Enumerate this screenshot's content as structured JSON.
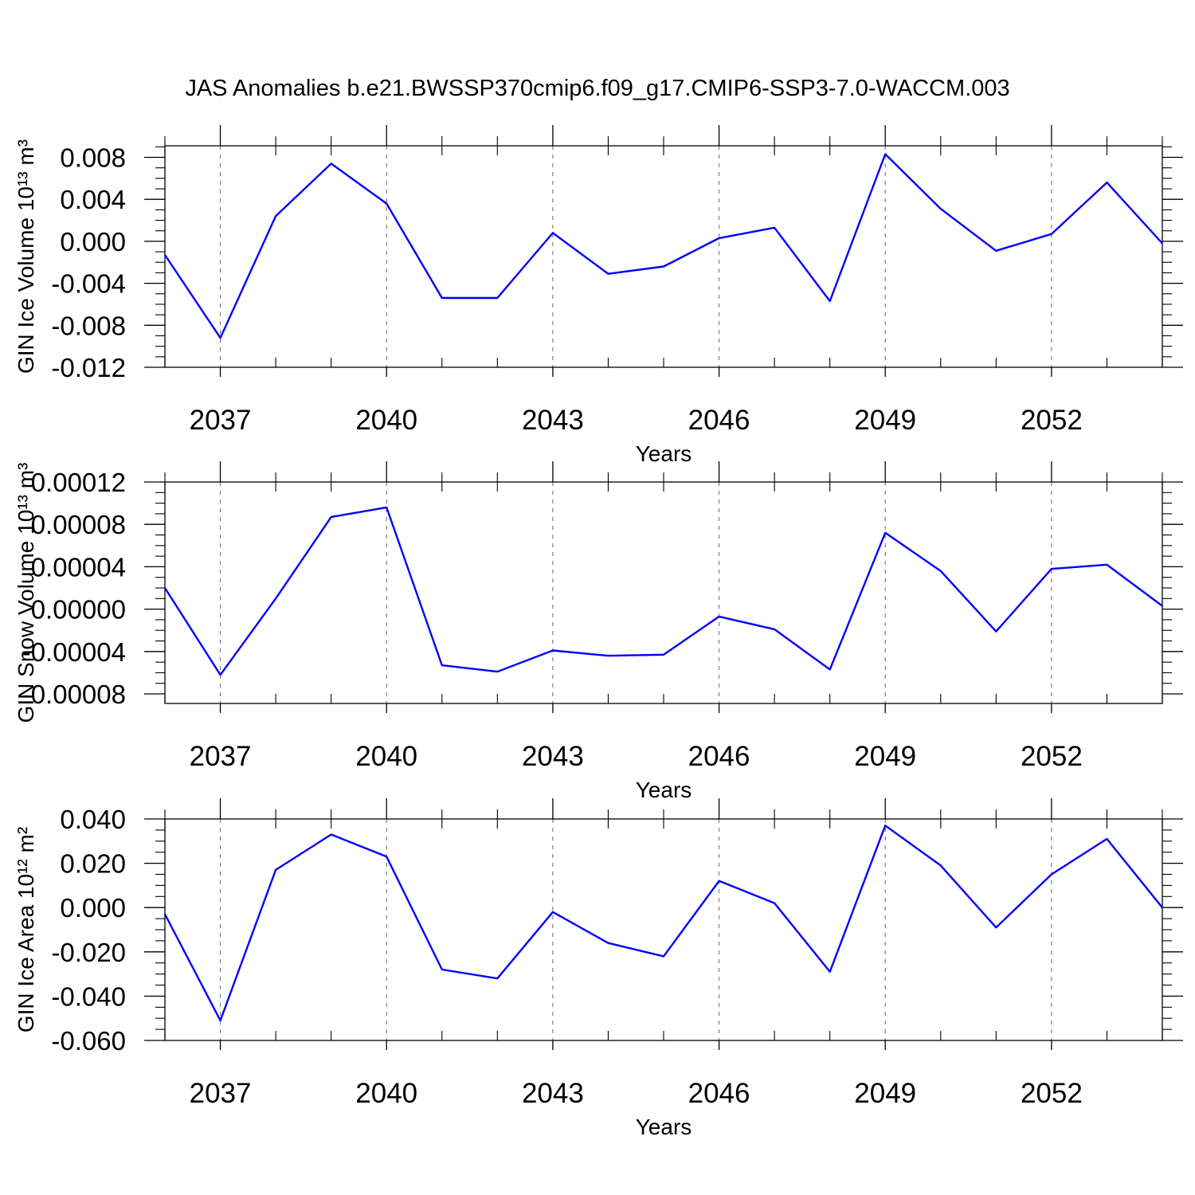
{
  "figure": {
    "title": "JAS Anomalies b.e21.BWSSP370cmip6.f09_g17.CMIP6-SSP3-7.0-WACCM.003"
  },
  "line_color": "#0000ff",
  "chart_data": [
    {
      "type": "line",
      "ylabel": "GIN Ice Volume 10¹³ m³",
      "xlabel": "Years",
      "x": [
        2036,
        2037,
        2038,
        2039,
        2040,
        2041,
        2042,
        2043,
        2044,
        2045,
        2046,
        2047,
        2048,
        2049,
        2050,
        2051,
        2052,
        2053,
        2054
      ],
      "values": [
        -0.0013,
        -0.0092,
        0.0024,
        0.0074,
        0.0036,
        -0.0054,
        -0.0054,
        0.0008,
        -0.0031,
        -0.0024,
        0.0003,
        0.0013,
        -0.0057,
        0.0083,
        0.0031,
        -0.0009,
        0.0007,
        0.0056,
        -0.0002
      ],
      "xlim": [
        2036,
        2054
      ],
      "ylim": [
        -0.012,
        0.0091
      ],
      "xticks": [
        2037,
        2040,
        2043,
        2046,
        2049,
        2052
      ],
      "yticks": [
        -0.012,
        -0.008,
        -0.004,
        0.0,
        0.004,
        0.008
      ],
      "yticklabels": [
        "-0.012",
        "-0.008",
        "-0.004",
        "0.000",
        "0.004",
        "0.008"
      ],
      "yminor_step": 0.001,
      "grid": "vertical dashed at major x ticks"
    },
    {
      "type": "line",
      "ylabel": "GIN Snow Volume 10¹³ m³",
      "xlabel": "Years",
      "x": [
        2036,
        2037,
        2038,
        2039,
        2040,
        2041,
        2042,
        2043,
        2044,
        2045,
        2046,
        2047,
        2048,
        2049,
        2050,
        2051,
        2052,
        2053,
        2054
      ],
      "values": [
        2e-05,
        -6.2e-05,
        1e-05,
        8.7e-05,
        9.6e-05,
        -5.3e-05,
        -5.9e-05,
        -3.9e-05,
        -4.4e-05,
        -4.3e-05,
        -7e-06,
        -1.9e-05,
        -5.7e-05,
        7.2e-05,
        3.6e-05,
        -2.1e-05,
        3.8e-05,
        4.2e-05,
        3e-06
      ],
      "xlim": [
        2036,
        2054
      ],
      "ylim": [
        -8.9e-05,
        0.00012
      ],
      "xticks": [
        2037,
        2040,
        2043,
        2046,
        2049,
        2052
      ],
      "yticks": [
        -8e-05,
        -4e-05,
        0.0,
        4e-05,
        8e-05,
        0.00012
      ],
      "yticklabels": [
        "-0.00008",
        "-0.00004",
        "0.00000",
        "0.00004",
        "0.00008",
        "0.00012"
      ],
      "yminor_step": 1e-05,
      "grid": "vertical dashed at major x ticks"
    },
    {
      "type": "line",
      "ylabel": "GIN Ice Area 10¹² m²",
      "xlabel": "Years",
      "x": [
        2036,
        2037,
        2038,
        2039,
        2040,
        2041,
        2042,
        2043,
        2044,
        2045,
        2046,
        2047,
        2048,
        2049,
        2050,
        2051,
        2052,
        2053,
        2054
      ],
      "values": [
        -0.003,
        -0.051,
        0.017,
        0.033,
        0.023,
        -0.028,
        -0.032,
        -0.002,
        -0.016,
        -0.022,
        0.012,
        0.002,
        -0.029,
        0.037,
        0.019,
        -0.009,
        0.015,
        0.031,
        0.0
      ],
      "xlim": [
        2036,
        2054
      ],
      "ylim": [
        -0.06,
        0.04
      ],
      "xticks": [
        2037,
        2040,
        2043,
        2046,
        2049,
        2052
      ],
      "yticks": [
        -0.06,
        -0.04,
        -0.02,
        0.0,
        0.02,
        0.04
      ],
      "yticklabels": [
        "-0.060",
        "-0.040",
        "-0.020",
        "0.000",
        "0.020",
        "0.040"
      ],
      "yminor_step": 0.005,
      "grid": "vertical dashed at major x ticks"
    }
  ]
}
